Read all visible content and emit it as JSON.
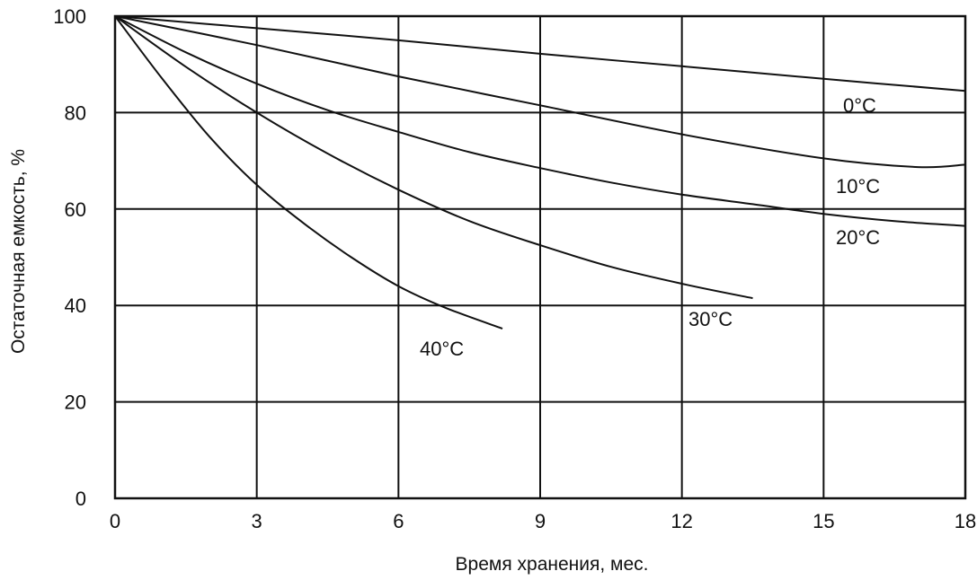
{
  "chart_data": {
    "type": "line",
    "title": "",
    "xlabel": "Время хранения, мес.",
    "ylabel": "Остаточная емкость, %",
    "xlim": [
      0,
      18
    ],
    "ylim": [
      0,
      100
    ],
    "xticks": [
      0,
      3,
      6,
      9,
      12,
      15,
      18
    ],
    "yticks": [
      0,
      20,
      40,
      60,
      80,
      100
    ],
    "xtick_labels": [
      "0",
      "3",
      "6",
      "9",
      "12",
      "15",
      "18"
    ],
    "ytick_labels": [
      "0",
      "20",
      "40",
      "60",
      "80",
      "100"
    ],
    "grid": true,
    "legend": "none",
    "series": [
      {
        "name": "0°С",
        "x": [
          0,
          3,
          6,
          9,
          12,
          15,
          18
        ],
        "y": [
          100,
          97.5,
          95,
          92.2,
          89.6,
          87,
          84.5
        ]
      },
      {
        "name": "10°С",
        "x": [
          0,
          3,
          6,
          9,
          12,
          15,
          17,
          18
        ],
        "y": [
          100,
          94,
          87.5,
          81.5,
          75.5,
          70.5,
          68.7,
          69.2
        ]
      },
      {
        "name": "20°С",
        "x": [
          0,
          1.5,
          3,
          4.5,
          6,
          7.5,
          9,
          10.5,
          12,
          13.5,
          15,
          16.5,
          18
        ],
        "y": [
          100,
          92.5,
          86,
          80.5,
          76,
          71.8,
          68.5,
          65.5,
          63,
          61,
          59,
          57.5,
          56.5
        ]
      },
      {
        "name": "30°С",
        "x": [
          0,
          1.5,
          3,
          4.5,
          6,
          7.5,
          9,
          10.5,
          12,
          13.5
        ],
        "y": [
          100,
          89.5,
          80,
          71.5,
          64,
          57.5,
          52.5,
          48,
          44.5,
          41.5
        ]
      },
      {
        "name": "40°С",
        "x": [
          0,
          1,
          2,
          3,
          4,
          5,
          6,
          7,
          8.2
        ],
        "y": [
          100,
          87,
          75,
          65,
          57,
          50,
          44,
          39.5,
          35.2
        ]
      }
    ]
  }
}
